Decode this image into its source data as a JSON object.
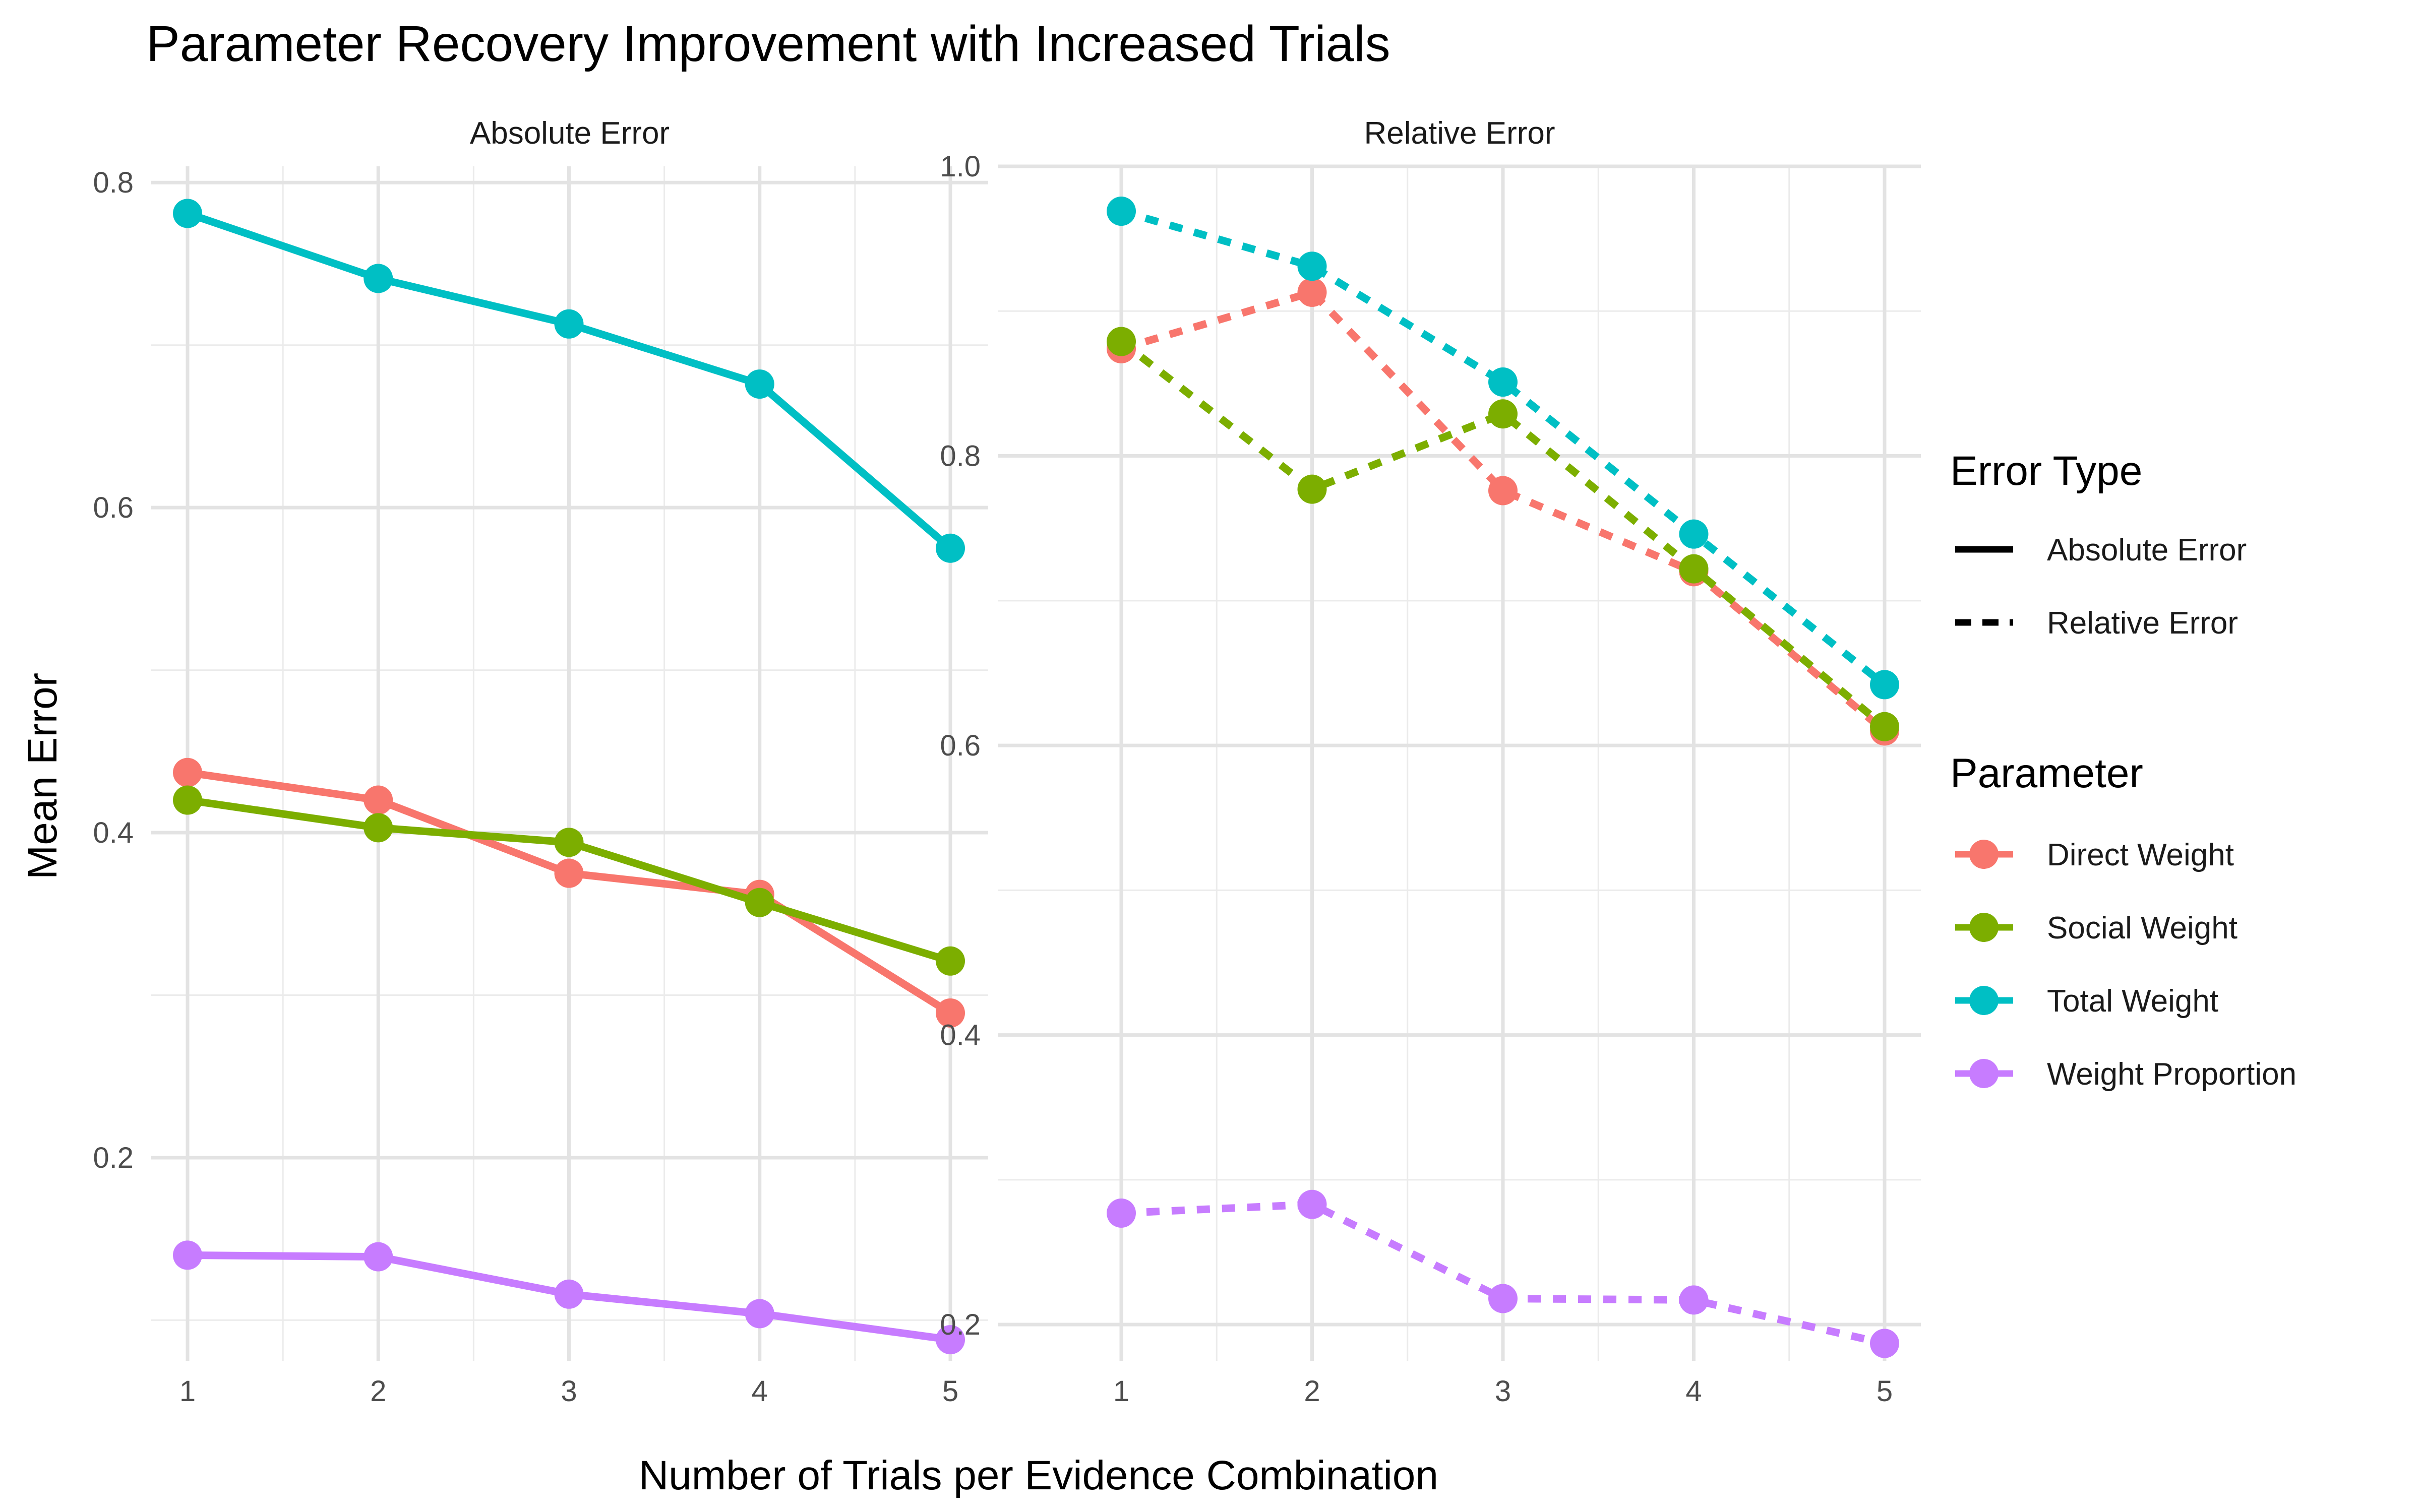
{
  "chart_data": {
    "type": "line",
    "title": "Parameter Recovery Improvement with Increased Trials",
    "xlabel": "Number of Trials per Evidence Combination",
    "ylabel": "Mean Error",
    "x": [
      1,
      2,
      3,
      4,
      5
    ],
    "x_ticks": [
      "1",
      "2",
      "3",
      "4",
      "5"
    ],
    "grid": true,
    "legend_position": "right",
    "legends": [
      {
        "title": "Error Type",
        "entries": [
          {
            "label": "Absolute Error",
            "linetype": "solid"
          },
          {
            "label": "Relative Error",
            "linetype": "dashed"
          }
        ]
      },
      {
        "title": "Parameter",
        "entries": [
          {
            "label": "Direct Weight",
            "color": "#F8766D"
          },
          {
            "label": "Social Weight",
            "color": "#7CAE00"
          },
          {
            "label": "Total Weight",
            "color": "#00BFC4"
          },
          {
            "label": "Weight Proportion",
            "color": "#C77CFF"
          }
        ]
      }
    ],
    "facets": [
      {
        "label": "Absolute Error",
        "linetype": "solid",
        "ylim": [
          0.075,
          0.81
        ],
        "y_ticks": [
          0.2,
          0.4,
          0.6,
          0.8
        ],
        "y_tick_labels": [
          "0.2",
          "0.4",
          "0.6",
          "0.8"
        ],
        "series": [
          {
            "name": "Direct Weight",
            "color": "#F8766D",
            "values": [
              0.437,
              0.42,
              0.375,
              0.362,
              0.289
            ]
          },
          {
            "name": "Social Weight",
            "color": "#7CAE00",
            "values": [
              0.42,
              0.403,
              0.394,
              0.357,
              0.321
            ]
          },
          {
            "name": "Total Weight",
            "color": "#00BFC4",
            "values": [
              0.781,
              0.741,
              0.713,
              0.676,
              0.575
            ]
          },
          {
            "name": "Weight Proportion",
            "color": "#C77CFF",
            "values": [
              0.14,
              0.139,
              0.116,
              0.104,
              0.088
            ]
          }
        ]
      },
      {
        "label": "Relative Error",
        "linetype": "dashed",
        "ylim": [
          0.175,
          1.0
        ],
        "y_ticks": [
          0.2,
          0.4,
          0.6,
          0.8,
          1.0
        ],
        "y_tick_labels": [
          "0.2",
          "0.4",
          "0.6",
          "0.8",
          "1.0"
        ],
        "series": [
          {
            "name": "Direct Weight",
            "color": "#F8766D",
            "values": [
              0.874,
              0.913,
              0.776,
              0.72,
              0.61
            ]
          },
          {
            "name": "Social Weight",
            "color": "#7CAE00",
            "values": [
              0.879,
              0.777,
              0.829,
              0.722,
              0.613
            ]
          },
          {
            "name": "Total Weight",
            "color": "#00BFC4",
            "values": [
              0.969,
              0.931,
              0.851,
              0.746,
              0.642
            ]
          },
          {
            "name": "Weight Proportion",
            "color": "#C77CFF",
            "values": [
              0.277,
              0.283,
              0.218,
              0.217,
              0.187
            ]
          }
        ]
      }
    ]
  }
}
